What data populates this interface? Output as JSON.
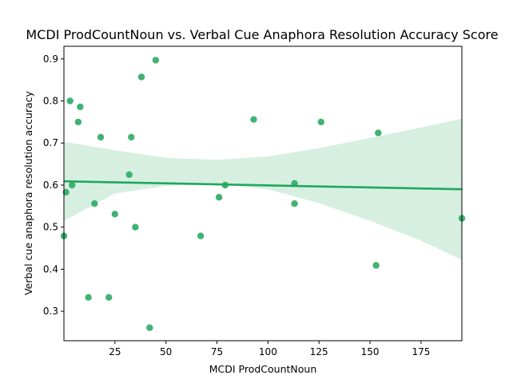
{
  "chart_data": {
    "type": "scatter",
    "title": "MCDI ProdCountNoun vs. Verbal Cue Anaphora Resolution Accuracy Score",
    "xlabel": "MCDI ProdCountNoun",
    "ylabel": "Verbal cue anaphora resolution accuracy",
    "xlim": [
      0,
      195
    ],
    "ylim": [
      0.23,
      0.93
    ],
    "xticks": [
      25,
      50,
      75,
      100,
      125,
      150,
      175
    ],
    "yticks": [
      0.3,
      0.4,
      0.5,
      0.6,
      0.7,
      0.8,
      0.9
    ],
    "grid": false,
    "colors": {
      "points": "#2eaa64",
      "line": "#1fa85c",
      "band": "#d7efe1"
    },
    "points": [
      {
        "x": 0,
        "y": 0.479
      },
      {
        "x": 1,
        "y": 0.583
      },
      {
        "x": 3,
        "y": 0.8
      },
      {
        "x": 4,
        "y": 0.6
      },
      {
        "x": 7,
        "y": 0.75
      },
      {
        "x": 8,
        "y": 0.786
      },
      {
        "x": 12,
        "y": 0.333
      },
      {
        "x": 15,
        "y": 0.556
      },
      {
        "x": 18,
        "y": 0.714
      },
      {
        "x": 22,
        "y": 0.333
      },
      {
        "x": 25,
        "y": 0.531
      },
      {
        "x": 32,
        "y": 0.625
      },
      {
        "x": 33,
        "y": 0.714
      },
      {
        "x": 35,
        "y": 0.5
      },
      {
        "x": 38,
        "y": 0.857
      },
      {
        "x": 42,
        "y": 0.261
      },
      {
        "x": 45,
        "y": 0.897
      },
      {
        "x": 67,
        "y": 0.479
      },
      {
        "x": 76,
        "y": 0.571
      },
      {
        "x": 79,
        "y": 0.6
      },
      {
        "x": 93,
        "y": 0.756
      },
      {
        "x": 113,
        "y": 0.604
      },
      {
        "x": 113,
        "y": 0.556
      },
      {
        "x": 126,
        "y": 0.75
      },
      {
        "x": 153,
        "y": 0.409
      },
      {
        "x": 154,
        "y": 0.724
      },
      {
        "x": 195,
        "y": 0.521
      }
    ],
    "regression": {
      "x": [
        0,
        195
      ],
      "y": [
        0.609,
        0.59
      ]
    },
    "confidence_band": {
      "x": [
        0,
        25,
        50,
        75,
        100,
        125,
        150,
        175,
        195
      ],
      "upper": [
        0.703,
        0.683,
        0.665,
        0.66,
        0.668,
        0.688,
        0.712,
        0.737,
        0.758
      ],
      "lower": [
        0.515,
        0.58,
        0.598,
        0.602,
        0.59,
        0.557,
        0.515,
        0.468,
        0.422
      ]
    }
  }
}
